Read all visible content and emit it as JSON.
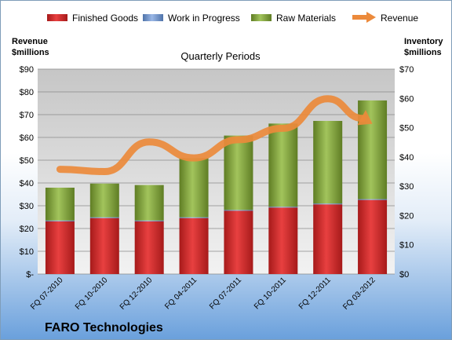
{
  "chart_data": {
    "type": "bar",
    "title": "Quarterly Periods",
    "company": "FARO Technologies",
    "left_axis": {
      "title_line1": "Revenue",
      "title_line2": "$millions",
      "ticks": [
        "$-",
        "$10",
        "$20",
        "$30",
        "$40",
        "$50",
        "$60",
        "$70",
        "$80",
        "$90"
      ],
      "ylim": [
        0,
        90
      ]
    },
    "right_axis": {
      "title_line1": "Inventory",
      "title_line2": "$millions",
      "ticks": [
        "$0",
        "$10",
        "$20",
        "$30",
        "$40",
        "$50",
        "$60",
        "$70"
      ],
      "ylim": [
        0,
        70
      ]
    },
    "categories": [
      "FQ 07-2010",
      "FQ 10-2010",
      "FQ 12-2010",
      "FQ 04-2011",
      "FQ 07-2011",
      "FQ 10-2011",
      "FQ 12-2011",
      "FQ 03-2012"
    ],
    "series": [
      {
        "name": "Finished Goods",
        "type": "bar",
        "axis": "right",
        "color": "#e03030",
        "values": [
          18.0,
          19.1,
          18.0,
          19.1,
          21.6,
          22.7,
          23.8,
          25.3
        ]
      },
      {
        "name": "Work in Progress",
        "type": "bar",
        "axis": "right",
        "color": "#6f93c9",
        "values": [
          0.3,
          0.3,
          0.3,
          0.3,
          0.3,
          0.3,
          0.3,
          0.3
        ]
      },
      {
        "name": "Raw Materials",
        "type": "bar",
        "axis": "right",
        "color": "#8db04a",
        "values": [
          11.2,
          11.5,
          12.1,
          20.2,
          25.4,
          28.4,
          28.2,
          33.7
        ]
      },
      {
        "name": "Revenue",
        "type": "line",
        "axis": "left",
        "color": "#ec8a3b",
        "values": [
          46,
          45,
          58,
          51,
          59,
          64,
          77,
          66
        ]
      }
    ],
    "grid": true,
    "legend": "top"
  }
}
